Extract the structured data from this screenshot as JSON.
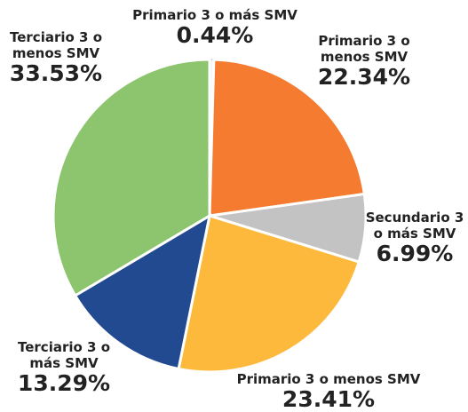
{
  "chart_data": {
    "type": "pie",
    "categories": [
      "Primario 3 o más SMV",
      "Primario 3 o menos SMV",
      "Secundario 3 o más SMV",
      "Primario 3 o menos SMV",
      "Terciario 3 o más SMV",
      "Terciario 3 o menos SMV"
    ],
    "values": [
      0.44,
      22.34,
      6.99,
      23.41,
      13.29,
      33.53
    ],
    "value_labels": [
      "0.44%",
      "22.34%",
      "6.99%",
      "23.41%",
      "13.29%",
      "33.53%"
    ],
    "colors": [
      "#f4f4f4",
      "#f47b30",
      "#c3c3c3",
      "#fdb93b",
      "#214a91",
      "#8cc56d"
    ]
  }
}
